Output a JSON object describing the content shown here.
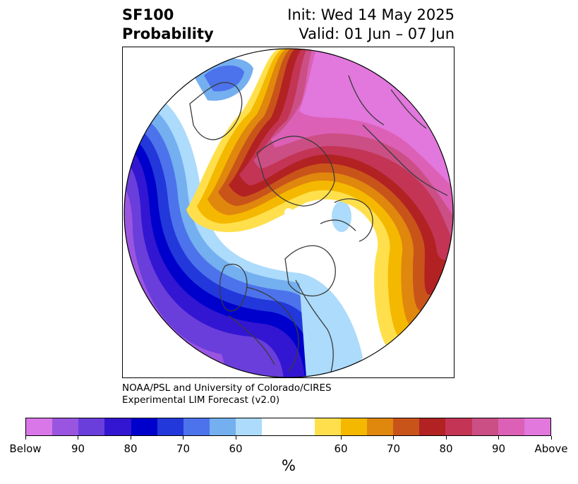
{
  "title": {
    "variable": "SF100",
    "subtitle": "Probability",
    "init": "Init: Wed 14 May 2025",
    "valid": "Valid: 01 Jun – 07 Jun"
  },
  "credit": {
    "line1": "NOAA/PSL and University of Colorado/CIRES",
    "line2": "Experimental LIM Forecast (v2.0)"
  },
  "colorbar": {
    "unit": "%",
    "colors": [
      "#d977e9",
      "#9a55e0",
      "#6a3edb",
      "#3316d1",
      "#0000cc",
      "#2238db",
      "#4c73eb",
      "#74aff0",
      "#acdbfb",
      "#ffffff",
      "#ffe04c",
      "#f5b800",
      "#e0870e",
      "#c9541a",
      "#b22222",
      "#c33455",
      "#cb4f84",
      "#db60b6",
      "#e277dd"
    ],
    "labels": [
      "Below",
      "90",
      "80",
      "70",
      "60",
      "60",
      "70",
      "80",
      "90",
      "Above"
    ]
  }
}
